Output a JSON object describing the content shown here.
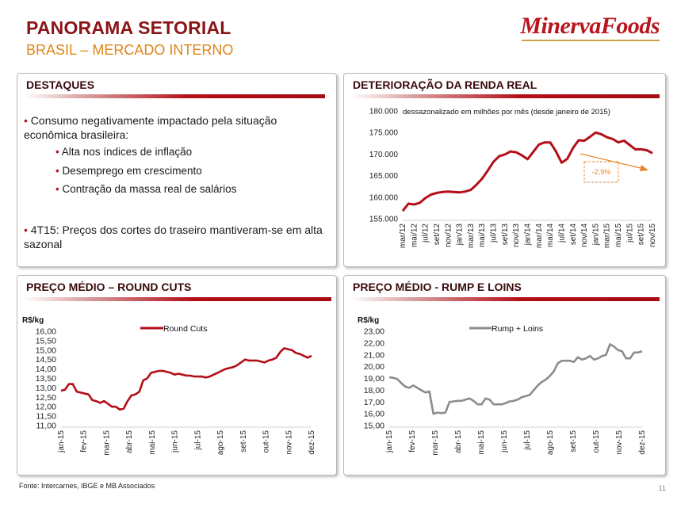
{
  "header": {
    "title": "PANORAMA SETORIAL",
    "subtitle": "BRASIL – MERCADO INTERNO",
    "logo_text": "MinervaFoods"
  },
  "destaques": {
    "heading": "DESTAQUES",
    "bullet1": "Consumo negativamente impactado pela situação econômica brasileira:",
    "sub1": "Alta nos índices de inflação",
    "sub2": "Desemprego em crescimento",
    "sub3": "Contração da massa real de salários",
    "bullet2": "4T15: Preços dos cortes do traseiro mantiveram-se em alta sazonal"
  },
  "footer": {
    "source": "Fonte: Intercarnes, IBGE e MB Associados",
    "page": "11"
  },
  "colors": {
    "accent": "#b8151d",
    "line_red": "#b30f18",
    "line_gray": "#8c8c8c",
    "annotation": "#e8852a"
  },
  "chart_data": [
    {
      "id": "renda",
      "panel_title": "DETERIORAÇÃO DA RENDA REAL",
      "type": "line",
      "subtitle": "dessazonalizado em milhões por mês (desde janeiro de 2015)",
      "ylim": [
        155000,
        180000
      ],
      "y_ticks": [
        "155.000",
        "160.000",
        "165.000",
        "170.000",
        "175.000",
        "180.000"
      ],
      "x_tick_labels": [
        "mar/12",
        "mai/12",
        "jul/12",
        "set/12",
        "nov/12",
        "jan/13",
        "mar/13",
        "mai/13",
        "jul/13",
        "set/13",
        "nov/13",
        "jan/14",
        "mar/14",
        "mai/14",
        "jul/14",
        "set/14",
        "nov/14",
        "jan/15",
        "mar/15",
        "mai/15",
        "jul/15",
        "set/15",
        "nov/15"
      ],
      "annotation": "-2,9%",
      "series": [
        {
          "color": "#b30f18",
          "x": [
            "mar/12",
            "abr/12",
            "mai/12",
            "jun/12",
            "jul/12",
            "ago/12",
            "set/12",
            "out/12",
            "nov/12",
            "dez/12",
            "jan/13",
            "fev/13",
            "mar/13",
            "abr/13",
            "mai/13",
            "jun/13",
            "jul/13",
            "ago/13",
            "set/13",
            "out/13",
            "nov/13",
            "dez/13",
            "jan/14",
            "fev/14",
            "mar/14",
            "abr/14",
            "mai/14",
            "jun/14",
            "jul/14",
            "ago/14",
            "set/14",
            "out/14",
            "nov/14",
            "dez/14",
            "jan/15",
            "fev/15",
            "mar/15",
            "abr/15",
            "mai/15",
            "jun/15",
            "jul/15",
            "ago/15",
            "set/15",
            "out/15",
            "nov/15"
          ],
          "values": [
            156800,
            158500,
            158300,
            158700,
            159800,
            160600,
            161000,
            161200,
            161300,
            161200,
            161100,
            161300,
            161700,
            162900,
            164300,
            166200,
            168200,
            169500,
            169900,
            170600,
            170400,
            169700,
            168800,
            170500,
            172200,
            172700,
            172700,
            170600,
            168000,
            168900,
            171400,
            173200,
            173100,
            174000,
            175000,
            174600,
            173900,
            173500,
            172700,
            173100,
            172100,
            171100,
            171100,
            170900,
            170200
          ]
        }
      ]
    },
    {
      "id": "round",
      "panel_title": "PREÇO MÉDIO – ROUND CUTS",
      "type": "line",
      "ylabel": "R$/kg",
      "ylim": [
        11.0,
        16.0
      ],
      "y_ticks": [
        "11,00",
        "11,50",
        "12,00",
        "12,50",
        "13,00",
        "13,50",
        "14,00",
        "14,50",
        "15,00",
        "15,50",
        "16,00"
      ],
      "x_tick_labels": [
        "jan-15",
        "fev-15",
        "mar-15",
        "abr-15",
        "mai-15",
        "jun-15",
        "jul-15",
        "ago-15",
        "set-15",
        "out-15",
        "nov-15",
        "dez-15"
      ],
      "series": [
        {
          "name": "Round Cuts",
          "color": "#b30f18",
          "values": [
            12.85,
            12.9,
            13.2,
            13.2,
            12.8,
            12.75,
            12.7,
            12.65,
            12.35,
            12.3,
            12.2,
            12.3,
            12.15,
            12.0,
            12.0,
            11.85,
            11.9,
            12.3,
            12.6,
            12.65,
            12.8,
            13.4,
            13.5,
            13.8,
            13.85,
            13.9,
            13.9,
            13.85,
            13.8,
            13.7,
            13.75,
            13.7,
            13.65,
            13.65,
            13.6,
            13.6,
            13.6,
            13.55,
            13.6,
            13.7,
            13.8,
            13.9,
            14.0,
            14.05,
            14.1,
            14.2,
            14.35,
            14.5,
            14.45,
            14.45,
            14.45,
            14.4,
            14.35,
            14.45,
            14.5,
            14.6,
            14.9,
            15.1,
            15.05,
            15.0,
            14.85,
            14.8,
            14.7,
            14.6,
            14.7
          ]
        }
      ]
    },
    {
      "id": "rump",
      "panel_title": "PREÇO MÉDIO - RUMP E LOINS",
      "type": "line",
      "ylabel": "R$/kg",
      "ylim": [
        15.0,
        23.0
      ],
      "y_ticks": [
        "15,00",
        "16,00",
        "17,00",
        "18,00",
        "19,00",
        "20,00",
        "21,00",
        "22,00",
        "23,00"
      ],
      "x_tick_labels": [
        "jan-15",
        "fev-15",
        "mar-15",
        "abr-15",
        "mai-15",
        "jun-15",
        "jul-15",
        "ago-15",
        "set-15",
        "out-15",
        "nov-15",
        "dez-15"
      ],
      "series": [
        {
          "name": "Rump + Loins",
          "color": "#8c8c8c",
          "values": [
            19.1,
            19.05,
            18.95,
            18.6,
            18.3,
            18.2,
            18.4,
            18.2,
            18.0,
            17.8,
            17.9,
            16.0,
            16.1,
            16.05,
            16.1,
            17.0,
            17.05,
            17.1,
            17.1,
            17.2,
            17.3,
            17.1,
            16.8,
            16.8,
            17.3,
            17.2,
            16.8,
            16.8,
            16.8,
            16.9,
            17.05,
            17.1,
            17.2,
            17.4,
            17.5,
            17.6,
            18.0,
            18.4,
            18.7,
            18.9,
            19.2,
            19.6,
            20.3,
            20.5,
            20.5,
            20.5,
            20.4,
            20.8,
            20.6,
            20.7,
            20.9,
            20.6,
            20.7,
            20.9,
            21.0,
            21.9,
            21.7,
            21.4,
            21.3,
            20.7,
            20.7,
            21.2,
            21.2,
            21.3
          ]
        }
      ]
    }
  ]
}
